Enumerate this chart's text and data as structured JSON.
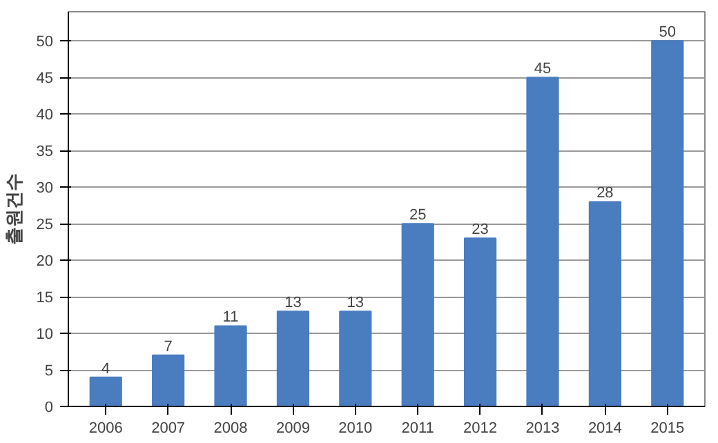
{
  "chart_data": {
    "type": "bar",
    "ylabel": "출원건수",
    "categories": [
      "2006",
      "2007",
      "2008",
      "2009",
      "2010",
      "2011",
      "2012",
      "2013",
      "2014",
      "2015"
    ],
    "values": [
      4,
      7,
      11,
      13,
      13,
      25,
      23,
      45,
      28,
      50
    ],
    "color": "#4a7cc0",
    "ylim": [
      0,
      54
    ],
    "yticks": [
      0,
      5,
      10,
      15,
      20,
      25,
      30,
      35,
      40,
      45,
      50
    ],
    "grid": "y",
    "data_labels": true
  }
}
